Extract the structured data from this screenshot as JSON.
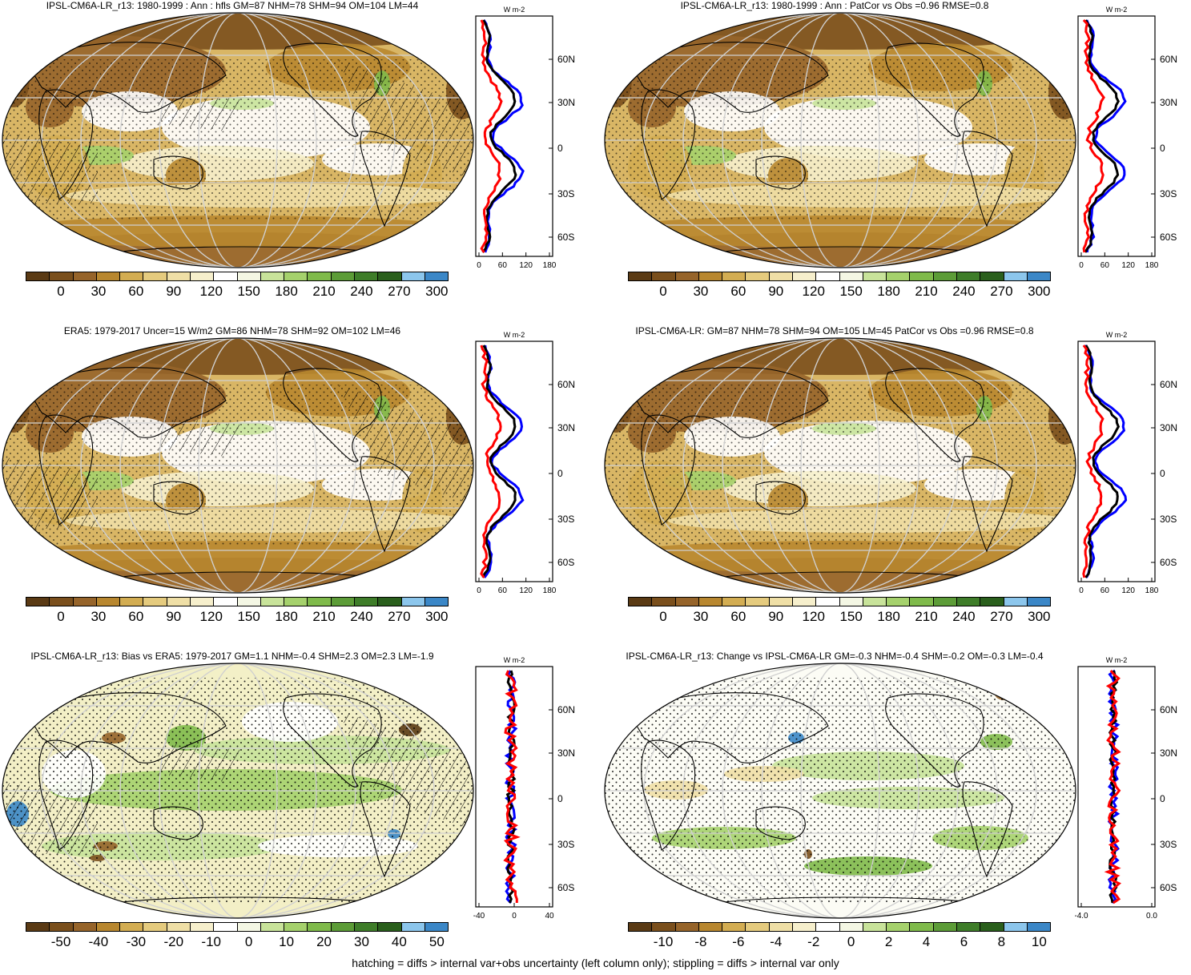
{
  "panels": [
    {
      "id": "p1",
      "title": "IPSL-CM6A-LR_r13: 1980-1999 : Ann : hfls GM=87 NHM=78 SHM=94 OM=104 LM=44",
      "colorbar_labels": [
        "0",
        "30",
        "60",
        "90",
        "120",
        "150",
        "180",
        "210",
        "240",
        "270",
        "300"
      ],
      "profile_xticks": [
        "0",
        "60",
        "120",
        "180"
      ],
      "profile_unit": "W m-2",
      "lat_labels": [
        "60N",
        "30N",
        "0",
        "30S",
        "60S"
      ],
      "hatching": true
    },
    {
      "id": "p2",
      "title": "IPSL-CM6A-LR_r13: 1980-1999 : Ann : PatCor vs Obs =0.96 RMSE=0.8",
      "colorbar_labels": [
        "0",
        "30",
        "60",
        "90",
        "120",
        "150",
        "180",
        "210",
        "240",
        "270",
        "300"
      ],
      "profile_xticks": [
        "0",
        "60",
        "120",
        "180"
      ],
      "profile_unit": "W m-2",
      "lat_labels": [
        "60N",
        "30N",
        "0",
        "30S",
        "60S"
      ],
      "hatching": false
    },
    {
      "id": "p3",
      "title": "ERA5: 1979-2017 Uncer=15 W/m2 GM=86 NHM=78 SHM=92 OM=102 LM=46",
      "colorbar_labels": [
        "0",
        "30",
        "60",
        "90",
        "120",
        "150",
        "180",
        "210",
        "240",
        "270",
        "300"
      ],
      "profile_xticks": [
        "0",
        "60",
        "120",
        "180"
      ],
      "profile_unit": "W m-2",
      "lat_labels": [
        "60N",
        "30N",
        "0",
        "30S",
        "60S"
      ],
      "hatching": true
    },
    {
      "id": "p4",
      "title": "IPSL-CM6A-LR: GM=87 NHM=78 SHM=94 OM=105 LM=45 PatCor vs Obs =0.96 RMSE=0.8",
      "colorbar_labels": [
        "0",
        "30",
        "60",
        "90",
        "120",
        "150",
        "180",
        "210",
        "240",
        "270",
        "300"
      ],
      "profile_xticks": [
        "0",
        "60",
        "120",
        "180"
      ],
      "profile_unit": "W m-2",
      "lat_labels": [
        "60N",
        "30N",
        "0",
        "30S",
        "60S"
      ],
      "hatching": false
    },
    {
      "id": "p5",
      "title": "IPSL-CM6A-LR_r13: Bias vs ERA5: 1979-2017 GM=1.1 NHM=-0.4 SHM=2.3 OM=2.3 LM=-1.9",
      "colorbar_labels": [
        "-50",
        "-40",
        "-30",
        "-20",
        "-10",
        "0",
        "10",
        "20",
        "30",
        "40",
        "50"
      ],
      "profile_xticks": [
        "-40",
        "0",
        "40"
      ],
      "profile_unit": "W m-2",
      "lat_labels": [
        "60N",
        "30N",
        "0",
        "30S",
        "60S"
      ],
      "hatching": true
    },
    {
      "id": "p6",
      "title": "IPSL-CM6A-LR_r13: Change vs IPSL-CM6A-LR GM=-0.3 NHM=-0.4 SHM=-0.2 OM=-0.3 LM=-0.4",
      "colorbar_labels": [
        "-10",
        "-8",
        "-6",
        "-4",
        "-2",
        "0",
        "2",
        "4",
        "6",
        "8",
        "10"
      ],
      "profile_xticks": [
        "-4.0",
        "0.0"
      ],
      "profile_unit": "W m-2",
      "lat_labels": [
        "60N",
        "30N",
        "0",
        "30S",
        "60S"
      ],
      "hatching": false
    }
  ],
  "colorbar_colors": [
    "#5a3a14",
    "#7a4f1c",
    "#96642a",
    "#b8872f",
    "#d3ad52",
    "#e5cb7e",
    "#efdfa6",
    "#f6efcc",
    "#ffffff",
    "#f4f7e4",
    "#c8e39a",
    "#a5d16c",
    "#7fba4a",
    "#5c9c37",
    "#3e7d29",
    "#2a5f1c",
    "#8cc6ec",
    "#3b87c7"
  ],
  "footer_text": "hatching = diffs > internal var+obs uncertainty (left column only); stippling = diffs > internal var only",
  "line_colors": {
    "model": "#0000ff",
    "obs": "#000000",
    "other": "#ff0000"
  }
}
